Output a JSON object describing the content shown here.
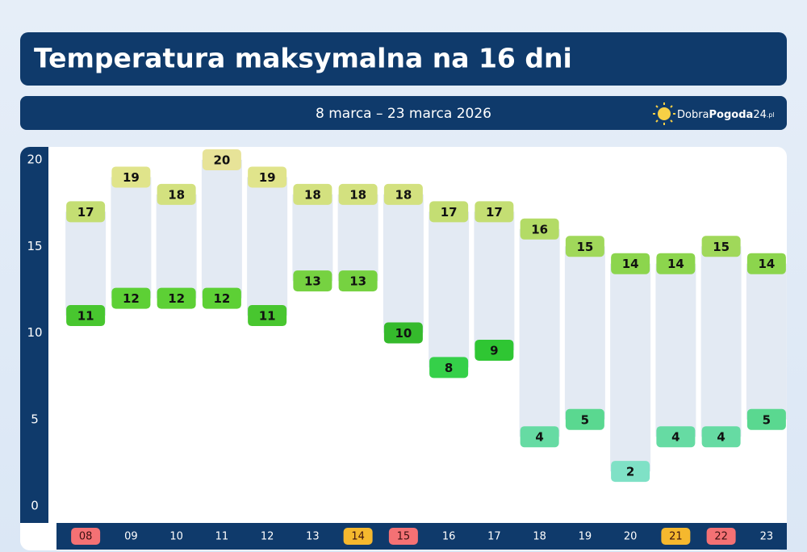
{
  "chart_data": {
    "type": "range_bar",
    "title": "Temperatura maksymalna na 16 dni",
    "subtitle": "8 marca – 23 marca 2026",
    "logo": [
      "Dobra",
      "Pogoda",
      "24",
      ".pl"
    ],
    "categories": [
      "08",
      "09",
      "10",
      "11",
      "12",
      "13",
      "14",
      "15",
      "16",
      "17",
      "18",
      "19",
      "20",
      "21",
      "22",
      "23"
    ],
    "category_colors": [
      "#f47174",
      null,
      null,
      null,
      null,
      null,
      "#f5b82e",
      "#f47174",
      null,
      null,
      null,
      null,
      null,
      "#f5b82e",
      "#f47174",
      null
    ],
    "high": [
      17,
      19,
      18,
      20,
      19,
      18,
      18,
      18,
      17,
      17,
      16,
      15,
      14,
      14,
      15,
      14
    ],
    "low": [
      11,
      12,
      12,
      12,
      11,
      13,
      13,
      10,
      8,
      9,
      4,
      5,
      2,
      4,
      4,
      5
    ],
    "ylim": [
      0,
      20
    ],
    "yticks": [
      0,
      5,
      10,
      15,
      20
    ],
    "bar_color": "#e3eaf3"
  }
}
